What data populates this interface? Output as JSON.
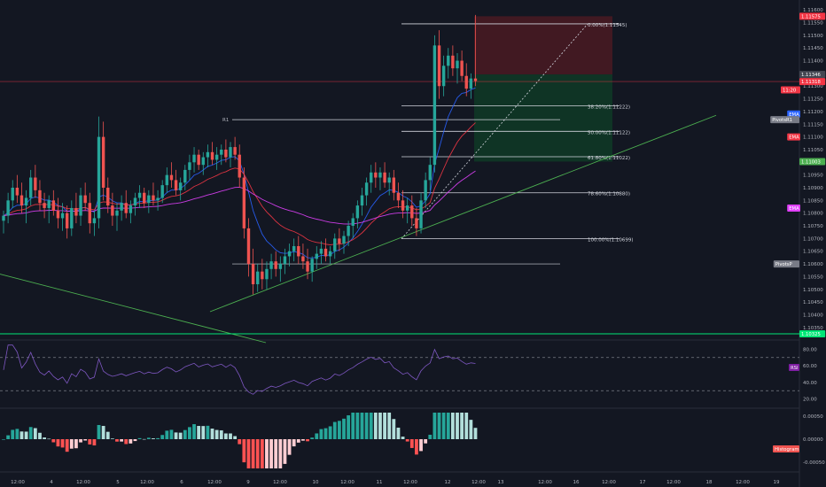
{
  "colors": {
    "background": "#131722",
    "up": "#26a69a",
    "down": "#ef5350",
    "axis_text": "#b2b5be",
    "fib_line": "#d1d4dc",
    "trendline": "#4caf50",
    "ema_fast": "#2962ff",
    "ema_slow": "#f23645",
    "ema_long": "#e040fb",
    "rsi_line": "#7e57c2",
    "stop_zone": "#4a1a22",
    "target_zone": "#0f3a26",
    "hist_up_strong": "#26a69a",
    "hist_up_weak": "#b2dfdb",
    "hist_down_strong": "#ff5252",
    "hist_down_weak": "#ffcdd2"
  },
  "price_axis": {
    "ticks": [
      "1.11600",
      "1.11550",
      "1.11500",
      "1.11450",
      "1.11400",
      "1.11350",
      "1.11300",
      "1.11250",
      "1.11200",
      "1.11150",
      "1.11100",
      "1.11050",
      "1.11000",
      "1.10950",
      "1.10900",
      "1.10850",
      "1.10800",
      "1.10750",
      "1.10700",
      "1.10650",
      "1.10600",
      "1.10550",
      "1.10500",
      "1.10450",
      "1.10400",
      "1.10350",
      "1.10300"
    ],
    "tags": [
      {
        "text": "1.11575",
        "price": 1.11575,
        "color": "#f23645"
      },
      {
        "text": "1.11346",
        "price": 1.11346,
        "color": "#434651"
      },
      {
        "text": "1.11318",
        "price": 1.11318,
        "color": "#f23645"
      },
      {
        "text": "11:20",
        "price": 1.11285,
        "color": "#f23645"
      },
      {
        "text": "EMA",
        "price": 1.1119,
        "color": "#2962ff"
      },
      {
        "text": "PivotsR1",
        "price": 1.11168,
        "color": "#787b86"
      },
      {
        "text": "EMA",
        "price": 1.111,
        "color": "#f23645"
      },
      {
        "text": "1.11003",
        "price": 1.11003,
        "color": "#4caf50"
      },
      {
        "text": "EMA",
        "price": 1.1082,
        "color": "#e040fb"
      },
      {
        "text": "PivotsP",
        "price": 1.106,
        "color": "#787b86"
      },
      {
        "text": "1.10325",
        "price": 1.10325,
        "color": "#00e676"
      }
    ]
  },
  "time_axis": {
    "labels": [
      "12:00",
      "4",
      "12:00",
      "5",
      "12:00",
      "6",
      "12:00",
      "9",
      "12:00",
      "10",
      "12:00",
      "11",
      "12:00",
      "12",
      "12:00",
      "13",
      "12:00",
      "16",
      "12:00",
      "17",
      "12:00",
      "18",
      "12:00",
      "19"
    ]
  },
  "fib_levels": [
    {
      "label": "0.00%(1.11545)",
      "price": 1.11545
    },
    {
      "label": "38.20%(1.11222)",
      "price": 1.11222
    },
    {
      "label": "50.00%(1.11122)",
      "price": 1.11122
    },
    {
      "label": "61.80%(1.11022)",
      "price": 1.11022
    },
    {
      "label": "78.60%(1.10880)",
      "price": 1.1088
    },
    {
      "label": "100.00%(1.10699)",
      "price": 1.10699
    }
  ],
  "pivots": {
    "r1_label": "R1",
    "r1": 1.11168,
    "p": 1.106
  },
  "rsi": {
    "label": "RSI",
    "ticks": [
      "80.00",
      "60.00",
      "40.00",
      "20.00"
    ],
    "upper": 70,
    "lower": 30
  },
  "histogram": {
    "label": "Histogram",
    "ticks": [
      "0.00050",
      "0.00000",
      "-0.00050"
    ]
  },
  "chart_data": {
    "type": "candlestick",
    "symbol_price_range": [
      1.103,
      1.11625
    ],
    "candles": [
      [
        1.1077,
        1.1081,
        1.1072,
        1.1079
      ],
      [
        1.1079,
        1.1088,
        1.1076,
        1.1085
      ],
      [
        1.1085,
        1.1093,
        1.1082,
        1.109
      ],
      [
        1.109,
        1.1095,
        1.1084,
        1.1087
      ],
      [
        1.1087,
        1.1092,
        1.108,
        1.1083
      ],
      [
        1.1083,
        1.1089,
        1.1076,
        1.1086
      ],
      [
        1.1086,
        1.1097,
        1.1083,
        1.1094
      ],
      [
        1.1094,
        1.1099,
        1.1086,
        1.1089
      ],
      [
        1.1089,
        1.1093,
        1.1081,
        1.1084
      ],
      [
        1.1084,
        1.1088,
        1.1078,
        1.1082
      ],
      [
        1.1082,
        1.1087,
        1.1076,
        1.1085
      ],
      [
        1.1085,
        1.1089,
        1.1079,
        1.1081
      ],
      [
        1.1081,
        1.1086,
        1.1074,
        1.1078
      ],
      [
        1.1078,
        1.1084,
        1.1073,
        1.108
      ],
      [
        1.108,
        1.1083,
        1.107,
        1.1074
      ],
      [
        1.1074,
        1.1085,
        1.1071,
        1.1082
      ],
      [
        1.1082,
        1.1088,
        1.1076,
        1.1079
      ],
      [
        1.1079,
        1.109,
        1.1075,
        1.1087
      ],
      [
        1.1087,
        1.1092,
        1.1081,
        1.1084
      ],
      [
        1.1084,
        1.1088,
        1.1072,
        1.1076
      ],
      [
        1.1076,
        1.1081,
        1.1071,
        1.1078
      ],
      [
        1.1078,
        1.1118,
        1.1074,
        1.111
      ],
      [
        1.111,
        1.1116,
        1.1085,
        1.109
      ],
      [
        1.109,
        1.1094,
        1.108,
        1.1083
      ],
      [
        1.1083,
        1.1088,
        1.1075,
        1.1079
      ],
      [
        1.1079,
        1.1084,
        1.1073,
        1.1081
      ],
      [
        1.1081,
        1.1087,
        1.1077,
        1.1084
      ],
      [
        1.1084,
        1.1089,
        1.1078,
        1.108
      ],
      [
        1.108,
        1.1085,
        1.1076,
        1.1083
      ],
      [
        1.1083,
        1.1088,
        1.1079,
        1.1086
      ],
      [
        1.1086,
        1.1091,
        1.1082,
        1.1088
      ],
      [
        1.1088,
        1.109,
        1.1082,
        1.1084
      ],
      [
        1.1084,
        1.1089,
        1.108,
        1.1087
      ],
      [
        1.1087,
        1.1092,
        1.1083,
        1.1085
      ],
      [
        1.1085,
        1.1089,
        1.1081,
        1.1086
      ],
      [
        1.1086,
        1.1093,
        1.1084,
        1.1091
      ],
      [
        1.1091,
        1.1098,
        1.1088,
        1.1095
      ],
      [
        1.1095,
        1.11,
        1.109,
        1.1093
      ],
      [
        1.1093,
        1.1097,
        1.1087,
        1.1089
      ],
      [
        1.1089,
        1.1094,
        1.1085,
        1.1092
      ],
      [
        1.1092,
        1.1099,
        1.1089,
        1.1097
      ],
      [
        1.1097,
        1.1103,
        1.1093,
        1.11
      ],
      [
        1.11,
        1.1106,
        1.1096,
        1.1103
      ],
      [
        1.1103,
        1.1105,
        1.1097,
        1.1099
      ],
      [
        1.1099,
        1.1104,
        1.1095,
        1.1102
      ],
      [
        1.1102,
        1.1107,
        1.1098,
        1.1104
      ],
      [
        1.1104,
        1.1108,
        1.1099,
        1.1101
      ],
      [
        1.1101,
        1.1106,
        1.1097,
        1.1103
      ],
      [
        1.1103,
        1.1107,
        1.1099,
        1.1105
      ],
      [
        1.1105,
        1.1109,
        1.11,
        1.1102
      ],
      [
        1.1102,
        1.1108,
        1.1098,
        1.1106
      ],
      [
        1.1106,
        1.111,
        1.1101,
        1.1103
      ],
      [
        1.1103,
        1.1107,
        1.109,
        1.1094
      ],
      [
        1.1094,
        1.1098,
        1.107,
        1.1074
      ],
      [
        1.1074,
        1.1078,
        1.1055,
        1.106
      ],
      [
        1.106,
        1.1066,
        1.1048,
        1.1052
      ],
      [
        1.1052,
        1.106,
        1.1049,
        1.1057
      ],
      [
        1.1057,
        1.1062,
        1.105,
        1.1054
      ],
      [
        1.1054,
        1.1061,
        1.105,
        1.1058
      ],
      [
        1.1058,
        1.1064,
        1.1054,
        1.1061
      ],
      [
        1.1061,
        1.1065,
        1.1055,
        1.1058
      ],
      [
        1.1058,
        1.1063,
        1.1053,
        1.106
      ],
      [
        1.106,
        1.1066,
        1.1056,
        1.1063
      ],
      [
        1.1063,
        1.1068,
        1.1059,
        1.1065
      ],
      [
        1.1065,
        1.107,
        1.1061,
        1.1067
      ],
      [
        1.1067,
        1.1071,
        1.106,
        1.1063
      ],
      [
        1.1063,
        1.1068,
        1.1058,
        1.1061
      ],
      [
        1.1061,
        1.1066,
        1.1054,
        1.1057
      ],
      [
        1.1057,
        1.1063,
        1.1053,
        1.1062
      ],
      [
        1.1062,
        1.1067,
        1.1058,
        1.1064
      ],
      [
        1.1064,
        1.1069,
        1.106,
        1.1066
      ],
      [
        1.1066,
        1.107,
        1.1061,
        1.1063
      ],
      [
        1.1063,
        1.1067,
        1.106,
        1.1065
      ],
      [
        1.1065,
        1.1072,
        1.1062,
        1.107
      ],
      [
        1.107,
        1.1074,
        1.1065,
        1.1068
      ],
      [
        1.1068,
        1.1073,
        1.1064,
        1.1071
      ],
      [
        1.1071,
        1.1077,
        1.1067,
        1.1075
      ],
      [
        1.1075,
        1.108,
        1.107,
        1.1078
      ],
      [
        1.1078,
        1.1085,
        1.1074,
        1.1083
      ],
      [
        1.1083,
        1.109,
        1.1079,
        1.1087
      ],
      [
        1.1087,
        1.1094,
        1.1083,
        1.1092
      ],
      [
        1.1092,
        1.1099,
        1.1088,
        1.1096
      ],
      [
        1.1096,
        1.11,
        1.109,
        1.1094
      ],
      [
        1.1094,
        1.1098,
        1.1089,
        1.1096
      ],
      [
        1.1096,
        1.11,
        1.109,
        1.1092
      ],
      [
        1.1092,
        1.1096,
        1.1087,
        1.1094
      ],
      [
        1.1094,
        1.1097,
        1.1085,
        1.1088
      ],
      [
        1.1088,
        1.1092,
        1.1082,
        1.1085
      ],
      [
        1.1085,
        1.1089,
        1.1078,
        1.1081
      ],
      [
        1.1081,
        1.1086,
        1.1076,
        1.1083
      ],
      [
        1.1083,
        1.1087,
        1.1075,
        1.1078
      ],
      [
        1.1078,
        1.1082,
        1.1071,
        1.1074
      ],
      [
        1.1074,
        1.1088,
        1.1072,
        1.1085
      ],
      [
        1.1085,
        1.1096,
        1.1082,
        1.1093
      ],
      [
        1.1093,
        1.1102,
        1.1089,
        1.1099
      ],
      [
        1.1099,
        1.115,
        1.1096,
        1.1146
      ],
      [
        1.1146,
        1.1152,
        1.1125,
        1.113
      ],
      [
        1.113,
        1.1142,
        1.1126,
        1.1138
      ],
      [
        1.1138,
        1.1145,
        1.1133,
        1.1142
      ],
      [
        1.1142,
        1.1146,
        1.1134,
        1.1137
      ],
      [
        1.1137,
        1.1143,
        1.1131,
        1.114
      ],
      [
        1.114,
        1.1144,
        1.1132,
        1.1134
      ],
      [
        1.1134,
        1.1139,
        1.1126,
        1.1129
      ],
      [
        1.1129,
        1.1135,
        1.1125,
        1.1133
      ],
      [
        1.1133,
        1.1158,
        1.113,
        1.1132
      ]
    ],
    "series": [
      {
        "name": "EMA",
        "color": "#2962ff"
      },
      {
        "name": "EMA",
        "color": "#f23645"
      },
      {
        "name": "EMA",
        "color": "#e040fb"
      }
    ]
  }
}
